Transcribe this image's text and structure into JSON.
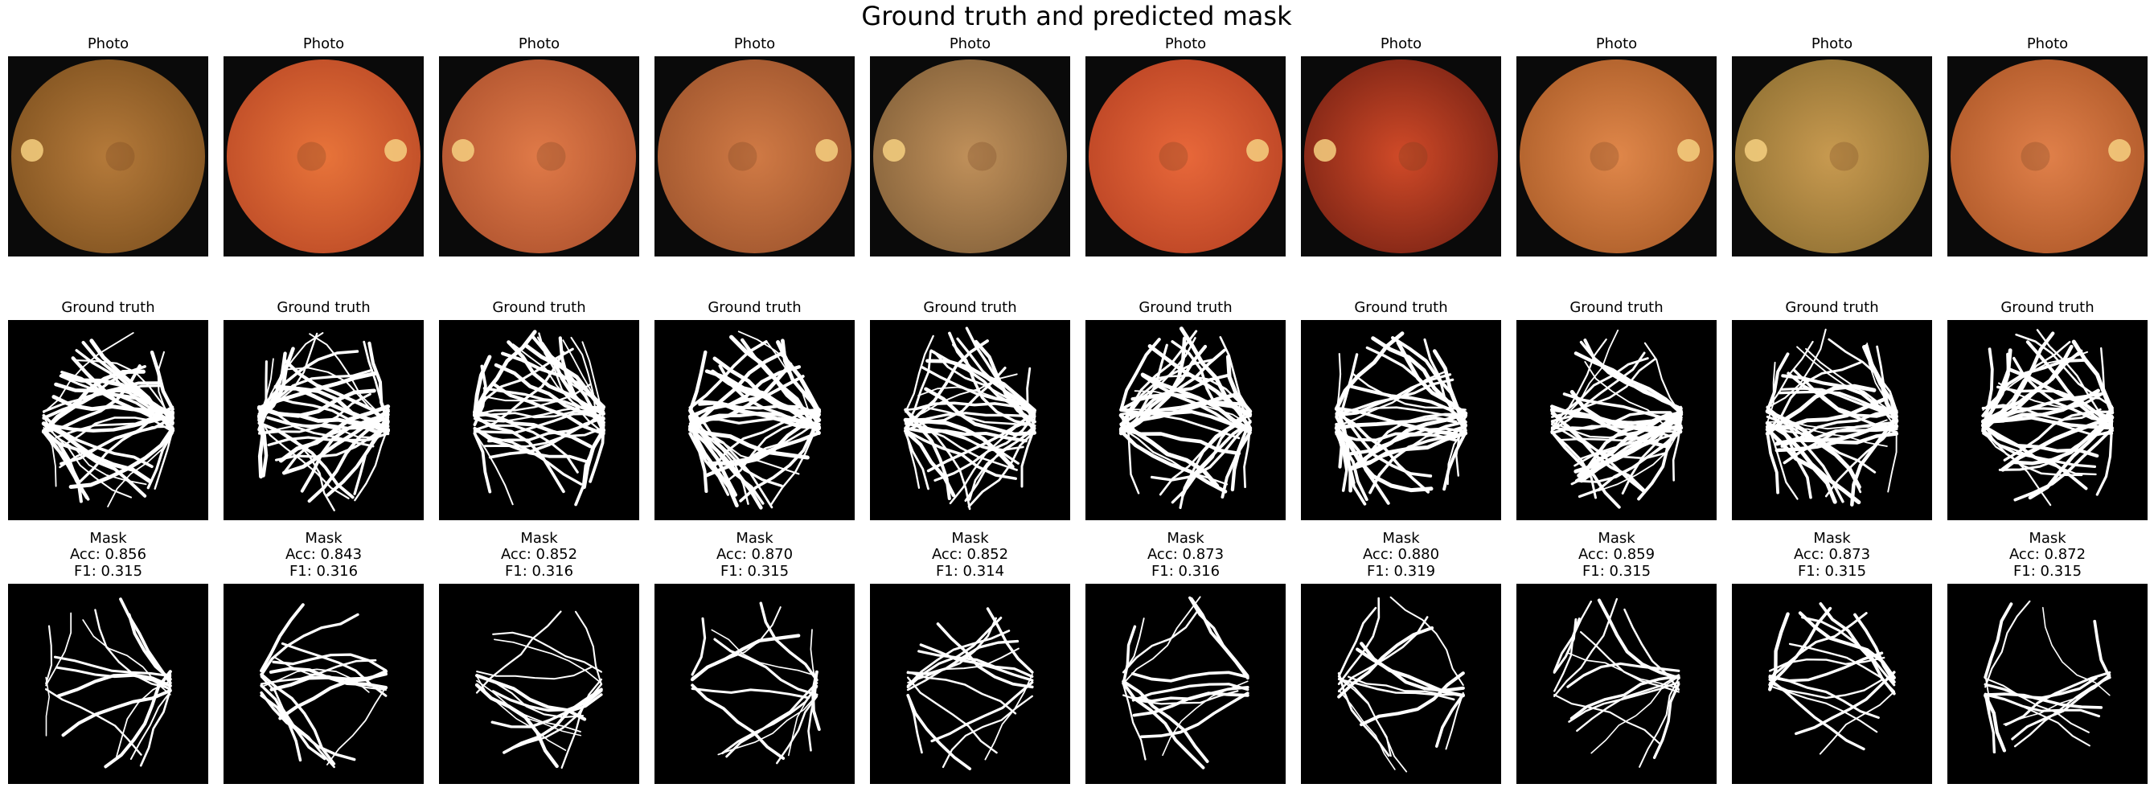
{
  "title": "Ground truth and predicted mask",
  "columns": [
    {
      "photo_title": "Photo",
      "truth_title": "Ground truth",
      "mask_title": "Mask",
      "acc": "Acc: 0.856",
      "f1": "F1: 0.315"
    },
    {
      "photo_title": "Photo",
      "truth_title": "Ground truth",
      "mask_title": "Mask",
      "acc": "Acc: 0.843",
      "f1": "F1: 0.316"
    },
    {
      "photo_title": "Photo",
      "truth_title": "Ground truth",
      "mask_title": "Mask",
      "acc": "Acc: 0.852",
      "f1": "F1: 0.316"
    },
    {
      "photo_title": "Photo",
      "truth_title": "Ground truth",
      "mask_title": "Mask",
      "acc": "Acc: 0.870",
      "f1": "F1: 0.315"
    },
    {
      "photo_title": "Photo",
      "truth_title": "Ground truth",
      "mask_title": "Mask",
      "acc": "Acc: 0.852",
      "f1": "F1: 0.314"
    },
    {
      "photo_title": "Photo",
      "truth_title": "Ground truth",
      "mask_title": "Mask",
      "acc": "Acc: 0.873",
      "f1": "F1: 0.316"
    },
    {
      "photo_title": "Photo",
      "truth_title": "Ground truth",
      "mask_title": "Mask",
      "acc": "Acc: 0.880",
      "f1": "F1: 0.319"
    },
    {
      "photo_title": "Photo",
      "truth_title": "Ground truth",
      "mask_title": "Mask",
      "acc": "Acc: 0.859",
      "f1": "F1: 0.315"
    },
    {
      "photo_title": "Photo",
      "truth_title": "Ground truth",
      "mask_title": "Mask",
      "acc": "Acc: 0.873",
      "f1": "F1: 0.315"
    },
    {
      "photo_title": "Photo",
      "truth_title": "Ground truth",
      "mask_title": "Mask",
      "acc": "Acc: 0.872",
      "f1": "F1: 0.315"
    }
  ]
}
